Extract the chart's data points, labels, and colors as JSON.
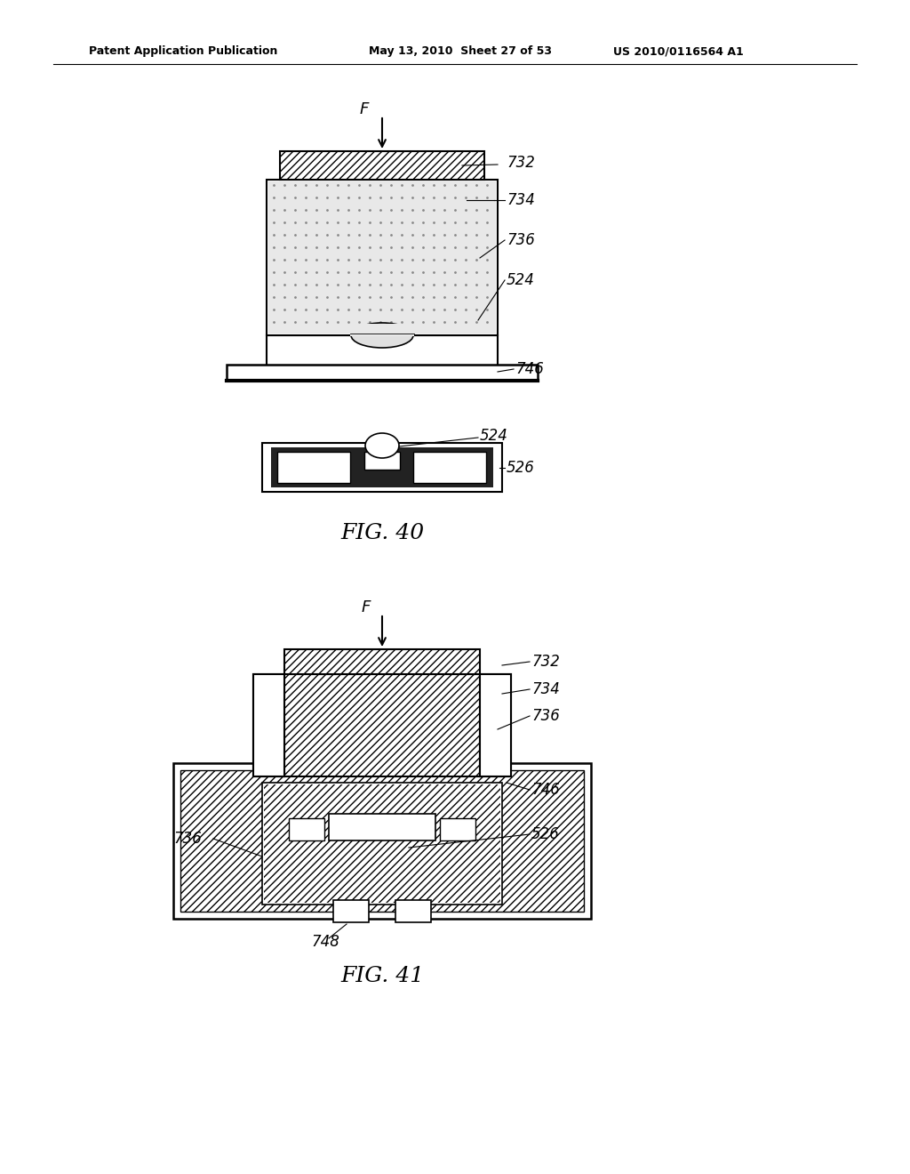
{
  "bg_color": "#ffffff",
  "header_left": "Patent Application Publication",
  "header_mid": "May 13, 2010  Sheet 27 of 53",
  "header_right": "US 2010/0116564 A1",
  "fig40_label": "FIG. 40",
  "fig41_label": "FIG. 41",
  "hatch_diagonal": "////",
  "hatch_stipple": "....",
  "line_color": "#000000",
  "fill_white": "#ffffff",
  "fill_light": "#f5f5f5",
  "fill_dark": "#222222"
}
